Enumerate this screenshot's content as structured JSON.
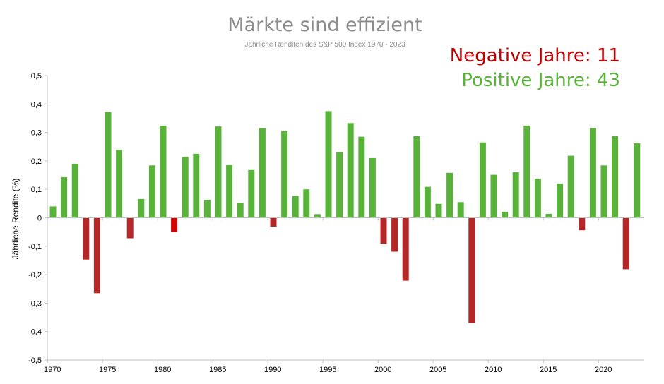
{
  "chart_data": {
    "type": "bar",
    "title": "Märkte sind effizient",
    "subtitle": "Jährliche Renditen des S&P 500 Index 1970 - 2023",
    "ylabel": "Jährliche Rendite (%)",
    "xlabel": "",
    "ylim": [
      -0.5,
      0.5
    ],
    "yticks": [
      "0,5",
      "0,4",
      "0,3",
      "0,2",
      "0,1",
      "0",
      "-0,1",
      "-0,2",
      "-0,3",
      "-0,4",
      "-0,5"
    ],
    "xticks": [
      "1970",
      "1975",
      "1980",
      "1985",
      "1990",
      "1995",
      "2000",
      "2005",
      "2010",
      "2015",
      "2020"
    ],
    "grid": false,
    "colors": {
      "positive": "#59b33a",
      "negative": "#b52626",
      "negative_1981": "#d00000"
    },
    "annotations": {
      "negative": "Negative Jahre: 11",
      "positive": "Positive Jahre: 43"
    },
    "years": [
      1970,
      1971,
      1972,
      1973,
      1974,
      1975,
      1976,
      1977,
      1978,
      1979,
      1980,
      1981,
      1982,
      1983,
      1984,
      1985,
      1986,
      1987,
      1988,
      1989,
      1990,
      1991,
      1992,
      1993,
      1994,
      1995,
      1996,
      1997,
      1998,
      1999,
      2000,
      2001,
      2002,
      2003,
      2004,
      2005,
      2006,
      2007,
      2008,
      2009,
      2010,
      2011,
      2012,
      2013,
      2014,
      2015,
      2016,
      2017,
      2018,
      2019,
      2020,
      2021,
      2022,
      2023
    ],
    "values": [
      0.04,
      0.143,
      0.19,
      -0.147,
      -0.265,
      0.372,
      0.238,
      -0.072,
      0.066,
      0.184,
      0.324,
      -0.049,
      0.214,
      0.225,
      0.063,
      0.321,
      0.185,
      0.052,
      0.168,
      0.315,
      -0.031,
      0.305,
      0.077,
      0.1,
      0.013,
      0.375,
      0.23,
      0.333,
      0.285,
      0.21,
      -0.091,
      -0.119,
      -0.221,
      0.287,
      0.109,
      0.049,
      0.158,
      0.055,
      -0.37,
      0.265,
      0.151,
      0.021,
      0.16,
      0.324,
      0.137,
      0.014,
      0.12,
      0.218,
      -0.044,
      0.315,
      0.184,
      0.287,
      -0.181,
      0.262
    ]
  }
}
